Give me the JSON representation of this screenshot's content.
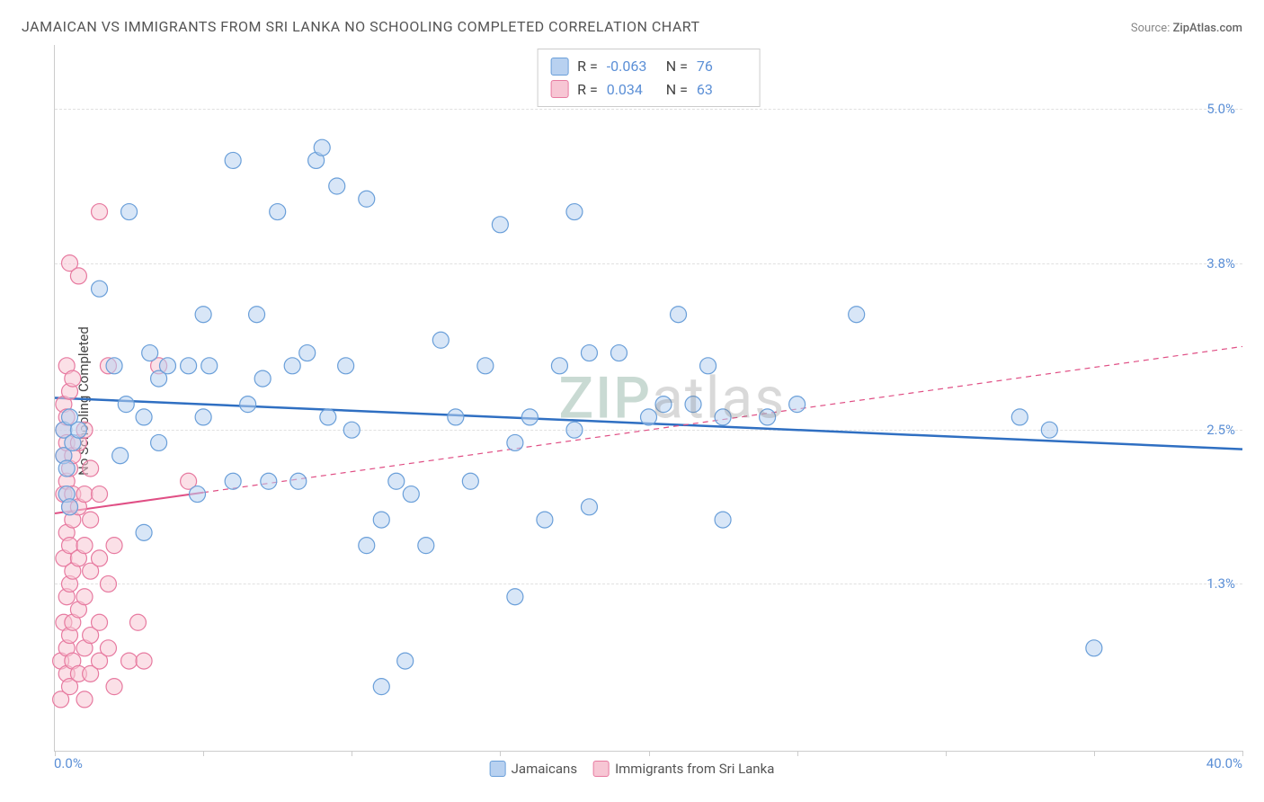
{
  "title": "JAMAICAN VS IMMIGRANTS FROM SRI LANKA NO SCHOOLING COMPLETED CORRELATION CHART",
  "source_label": "Source:",
  "source_value": "ZipAtlas.com",
  "ylabel": "No Schooling Completed",
  "watermark": {
    "part1": "ZIP",
    "part2": "atlas"
  },
  "chart": {
    "type": "scatter",
    "xlim": [
      0,
      40
    ],
    "ylim": [
      0,
      5.5
    ],
    "x_tick_min_label": "0.0%",
    "x_tick_max_label": "40.0%",
    "x_tick_positions": [
      0,
      5,
      10,
      15,
      20,
      25,
      30,
      35,
      40
    ],
    "y_ticks": [
      {
        "v": 1.3,
        "label": "1.3%"
      },
      {
        "v": 2.5,
        "label": "2.5%"
      },
      {
        "v": 3.8,
        "label": "3.8%"
      },
      {
        "v": 5.0,
        "label": "5.0%"
      }
    ],
    "grid_color": "#e0e0e0",
    "background_color": "#ffffff",
    "marker_radius": 9,
    "marker_stroke_width": 1.2,
    "marker_opacity": 0.55,
    "series": [
      {
        "name": "Jamaicans",
        "fill": "#b8d1f0",
        "stroke": "#6a9fd9",
        "R_label": "R =",
        "R": "-0.063",
        "N_label": "N =",
        "N": "76",
        "regression": {
          "solid_x_range": [
            0,
            40
          ],
          "y_start": 2.75,
          "y_end": 2.35,
          "color": "#2f6fc2",
          "width": 2.5
        },
        "points": [
          [
            0.3,
            2.3
          ],
          [
            0.3,
            2.5
          ],
          [
            0.4,
            2.0
          ],
          [
            0.4,
            2.2
          ],
          [
            0.5,
            2.6
          ],
          [
            0.5,
            1.9
          ],
          [
            0.6,
            2.4
          ],
          [
            0.8,
            2.5
          ],
          [
            1.5,
            3.6
          ],
          [
            2.0,
            3.0
          ],
          [
            2.2,
            2.3
          ],
          [
            2.4,
            2.7
          ],
          [
            2.5,
            4.2
          ],
          [
            3.0,
            2.6
          ],
          [
            3.0,
            1.7
          ],
          [
            3.2,
            3.1
          ],
          [
            3.5,
            2.9
          ],
          [
            3.5,
            2.4
          ],
          [
            3.8,
            3.0
          ],
          [
            4.5,
            3.0
          ],
          [
            4.8,
            2.0
          ],
          [
            5.0,
            3.4
          ],
          [
            5.0,
            2.6
          ],
          [
            5.2,
            3.0
          ],
          [
            6.0,
            4.6
          ],
          [
            6.0,
            2.1
          ],
          [
            6.5,
            2.7
          ],
          [
            6.8,
            3.4
          ],
          [
            7.0,
            2.9
          ],
          [
            7.2,
            2.1
          ],
          [
            7.5,
            4.2
          ],
          [
            8.0,
            3.0
          ],
          [
            8.2,
            2.1
          ],
          [
            8.5,
            3.1
          ],
          [
            8.8,
            4.6
          ],
          [
            9.0,
            4.7
          ],
          [
            9.2,
            2.6
          ],
          [
            9.5,
            4.4
          ],
          [
            9.8,
            3.0
          ],
          [
            10.0,
            2.5
          ],
          [
            10.5,
            4.3
          ],
          [
            10.5,
            1.6
          ],
          [
            11.0,
            1.8
          ],
          [
            11.0,
            0.5
          ],
          [
            11.5,
            2.1
          ],
          [
            11.8,
            0.7
          ],
          [
            12.0,
            2.0
          ],
          [
            12.5,
            1.6
          ],
          [
            13.0,
            3.2
          ],
          [
            13.5,
            2.6
          ],
          [
            14.0,
            2.1
          ],
          [
            14.5,
            3.0
          ],
          [
            15.0,
            4.1
          ],
          [
            15.5,
            1.2
          ],
          [
            15.5,
            2.4
          ],
          [
            16.0,
            2.6
          ],
          [
            16.5,
            1.8
          ],
          [
            17.0,
            3.0
          ],
          [
            17.5,
            2.5
          ],
          [
            17.5,
            4.2
          ],
          [
            18.0,
            3.1
          ],
          [
            18.0,
            1.9
          ],
          [
            19.0,
            3.1
          ],
          [
            20.0,
            2.6
          ],
          [
            20.5,
            2.7
          ],
          [
            21.0,
            3.4
          ],
          [
            21.5,
            2.7
          ],
          [
            22.0,
            3.0
          ],
          [
            22.5,
            2.6
          ],
          [
            22.5,
            1.8
          ],
          [
            24.0,
            2.6
          ],
          [
            25.0,
            2.7
          ],
          [
            27.0,
            3.4
          ],
          [
            32.5,
            2.6
          ],
          [
            35.0,
            0.8
          ],
          [
            33.5,
            2.5
          ]
        ]
      },
      {
        "name": "Immigrants from Sri Lanka",
        "fill": "#f7c6d4",
        "stroke": "#e77aa0",
        "R_label": "R =",
        "R": " 0.034",
        "N_label": "N =",
        "N": "63",
        "regression": {
          "solid_x_range": [
            0,
            5
          ],
          "dash_x_range": [
            5,
            40
          ],
          "y_start": 1.85,
          "y_end": 3.15,
          "color": "#e04f85",
          "width": 2,
          "dash": "6,5"
        },
        "points": [
          [
            0.2,
            0.4
          ],
          [
            0.2,
            0.7
          ],
          [
            0.3,
            1.0
          ],
          [
            0.3,
            1.5
          ],
          [
            0.3,
            2.0
          ],
          [
            0.3,
            2.3
          ],
          [
            0.3,
            2.5
          ],
          [
            0.3,
            2.7
          ],
          [
            0.4,
            0.6
          ],
          [
            0.4,
            0.8
          ],
          [
            0.4,
            1.2
          ],
          [
            0.4,
            1.7
          ],
          [
            0.4,
            2.1
          ],
          [
            0.4,
            2.4
          ],
          [
            0.4,
            2.6
          ],
          [
            0.4,
            3.0
          ],
          [
            0.5,
            0.5
          ],
          [
            0.5,
            0.9
          ],
          [
            0.5,
            1.3
          ],
          [
            0.5,
            1.6
          ],
          [
            0.5,
            1.9
          ],
          [
            0.5,
            2.2
          ],
          [
            0.5,
            2.8
          ],
          [
            0.5,
            3.8
          ],
          [
            0.6,
            0.7
          ],
          [
            0.6,
            1.0
          ],
          [
            0.6,
            1.4
          ],
          [
            0.6,
            1.8
          ],
          [
            0.6,
            2.0
          ],
          [
            0.6,
            2.3
          ],
          [
            0.6,
            2.9
          ],
          [
            0.8,
            0.6
          ],
          [
            0.8,
            1.1
          ],
          [
            0.8,
            1.5
          ],
          [
            0.8,
            1.9
          ],
          [
            0.8,
            2.4
          ],
          [
            0.8,
            3.7
          ],
          [
            1.0,
            0.8
          ],
          [
            1.0,
            1.2
          ],
          [
            1.0,
            1.6
          ],
          [
            1.0,
            2.0
          ],
          [
            1.0,
            2.5
          ],
          [
            1.0,
            0.4
          ],
          [
            1.2,
            0.6
          ],
          [
            1.2,
            0.9
          ],
          [
            1.2,
            1.4
          ],
          [
            1.2,
            1.8
          ],
          [
            1.2,
            2.2
          ],
          [
            1.5,
            0.7
          ],
          [
            1.5,
            1.0
          ],
          [
            1.5,
            1.5
          ],
          [
            1.5,
            2.0
          ],
          [
            1.5,
            4.2
          ],
          [
            1.8,
            0.8
          ],
          [
            1.8,
            1.3
          ],
          [
            1.8,
            3.0
          ],
          [
            2.0,
            0.5
          ],
          [
            2.0,
            1.6
          ],
          [
            2.5,
            0.7
          ],
          [
            2.8,
            1.0
          ],
          [
            3.0,
            0.7
          ],
          [
            3.5,
            3.0
          ],
          [
            4.5,
            2.1
          ]
        ]
      }
    ]
  }
}
